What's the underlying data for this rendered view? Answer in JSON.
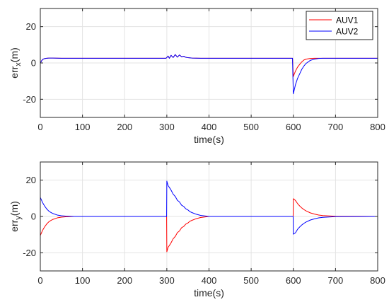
{
  "chart_data": [
    {
      "type": "line",
      "title": "",
      "xlabel": "time(s)",
      "ylabel_main": "err",
      "ylabel_sub": "x",
      "ylabel_unit": "(m)",
      "xlim": [
        0,
        800
      ],
      "ylim": [
        -30,
        30
      ],
      "xticks": [
        0,
        100,
        200,
        300,
        400,
        500,
        600,
        700,
        800
      ],
      "yticks": [
        -20,
        0,
        20
      ],
      "grid": true,
      "legend": {
        "position": "top-right",
        "entries": [
          "AUV1",
          "AUV2"
        ]
      },
      "series": [
        {
          "name": "AUV1",
          "color": "#ff0000",
          "x": [
            0,
            1,
            3,
            6,
            10,
            15,
            20,
            30,
            50,
            100,
            200,
            298,
            300,
            303,
            306,
            310,
            315,
            320,
            325,
            330,
            335,
            340,
            345,
            350,
            360,
            380,
            400,
            500,
            598,
            599,
            600,
            602,
            605,
            610,
            615,
            620,
            625,
            630,
            640,
            650,
            700,
            800
          ],
          "y": [
            0,
            0.3,
            1.2,
            2.0,
            2.4,
            2.6,
            2.7,
            2.7,
            2.6,
            2.6,
            2.6,
            2.6,
            3.0,
            3.8,
            2.6,
            4.2,
            3.0,
            4.6,
            3.2,
            4.4,
            3.4,
            3.7,
            3.1,
            2.9,
            2.7,
            2.6,
            2.6,
            2.6,
            2.6,
            -3.0,
            -7.5,
            -6.2,
            -4.5,
            -2.3,
            -0.8,
            0.6,
            1.6,
            2.1,
            2.5,
            2.6,
            2.6,
            2.6
          ]
        },
        {
          "name": "AUV2",
          "color": "#0000ff",
          "x": [
            0,
            1,
            3,
            6,
            10,
            15,
            20,
            30,
            50,
            100,
            200,
            298,
            300,
            303,
            306,
            310,
            315,
            320,
            325,
            330,
            335,
            340,
            345,
            350,
            360,
            380,
            400,
            500,
            598,
            599,
            600,
            602,
            605,
            610,
            615,
            620,
            625,
            630,
            640,
            650,
            660,
            670,
            700,
            800
          ],
          "y": [
            0,
            0.3,
            1.2,
            2.0,
            2.4,
            2.6,
            2.7,
            2.7,
            2.6,
            2.6,
            2.6,
            2.6,
            3.0,
            3.8,
            2.6,
            4.2,
            3.0,
            4.6,
            3.2,
            4.4,
            3.4,
            3.7,
            3.1,
            2.9,
            2.7,
            2.6,
            2.6,
            2.6,
            2.6,
            -8.0,
            -17.0,
            -15.0,
            -12.0,
            -8.5,
            -6.0,
            -3.5,
            -1.7,
            -0.3,
            1.4,
            2.1,
            2.5,
            2.6,
            2.6,
            2.6
          ]
        }
      ]
    },
    {
      "type": "line",
      "title": "",
      "xlabel": "time(s)",
      "ylabel_main": "err",
      "ylabel_sub": "y",
      "ylabel_unit": "(m)",
      "xlim": [
        0,
        800
      ],
      "ylim": [
        -30,
        30
      ],
      "xticks": [
        0,
        100,
        200,
        300,
        400,
        500,
        600,
        700,
        800
      ],
      "yticks": [
        -20,
        0,
        20
      ],
      "grid": true,
      "series": [
        {
          "name": "AUV1",
          "color": "#ff0000",
          "x": [
            0,
            5,
            10,
            15,
            20,
            25,
            30,
            40,
            50,
            60,
            70,
            80,
            100,
            200,
            299.5,
            300,
            303,
            306,
            310,
            315,
            320,
            325,
            330,
            335,
            340,
            345,
            350,
            355,
            360,
            370,
            380,
            390,
            400,
            500,
            599.5,
            600,
            605,
            610,
            615,
            620,
            625,
            630,
            640,
            650,
            660,
            670,
            700,
            800
          ],
          "y": [
            -10.5,
            -7.8,
            -5.8,
            -4.2,
            -3.0,
            -2.2,
            -1.6,
            -0.8,
            -0.4,
            -0.2,
            -0.1,
            0,
            0,
            0,
            0,
            -19.5,
            -17.0,
            -16.0,
            -14.5,
            -12.3,
            -11.0,
            -8.9,
            -8.0,
            -6.2,
            -5.5,
            -4.2,
            -3.6,
            -2.6,
            -2.1,
            -1.2,
            -0.6,
            -0.3,
            0,
            0,
            0,
            9.8,
            8.8,
            7.1,
            5.8,
            4.7,
            3.8,
            3.1,
            2.0,
            1.3,
            0.8,
            0.5,
            0.1,
            0
          ]
        },
        {
          "name": "AUV2",
          "color": "#0000ff",
          "x": [
            0,
            5,
            10,
            15,
            20,
            25,
            30,
            40,
            50,
            60,
            70,
            80,
            100,
            200,
            299.5,
            300,
            303,
            306,
            310,
            315,
            320,
            325,
            330,
            335,
            340,
            345,
            350,
            355,
            360,
            370,
            380,
            390,
            400,
            500,
            599.5,
            600,
            605,
            610,
            615,
            620,
            625,
            630,
            640,
            650,
            660,
            670,
            700,
            800
          ],
          "y": [
            10.5,
            7.8,
            5.8,
            4.2,
            3.0,
            2.2,
            1.6,
            0.8,
            0.4,
            0.2,
            0.1,
            0,
            0,
            0,
            0,
            19.5,
            17.0,
            16.0,
            14.5,
            12.3,
            11.0,
            8.9,
            8.0,
            6.2,
            5.5,
            4.2,
            3.6,
            2.6,
            2.1,
            1.2,
            0.6,
            0.3,
            0,
            0,
            0,
            -9.8,
            -9.0,
            -7.1,
            -5.8,
            -4.7,
            -3.8,
            -3.1,
            -2.0,
            -1.3,
            -0.8,
            -0.5,
            -0.1,
            0
          ]
        }
      ]
    }
  ]
}
